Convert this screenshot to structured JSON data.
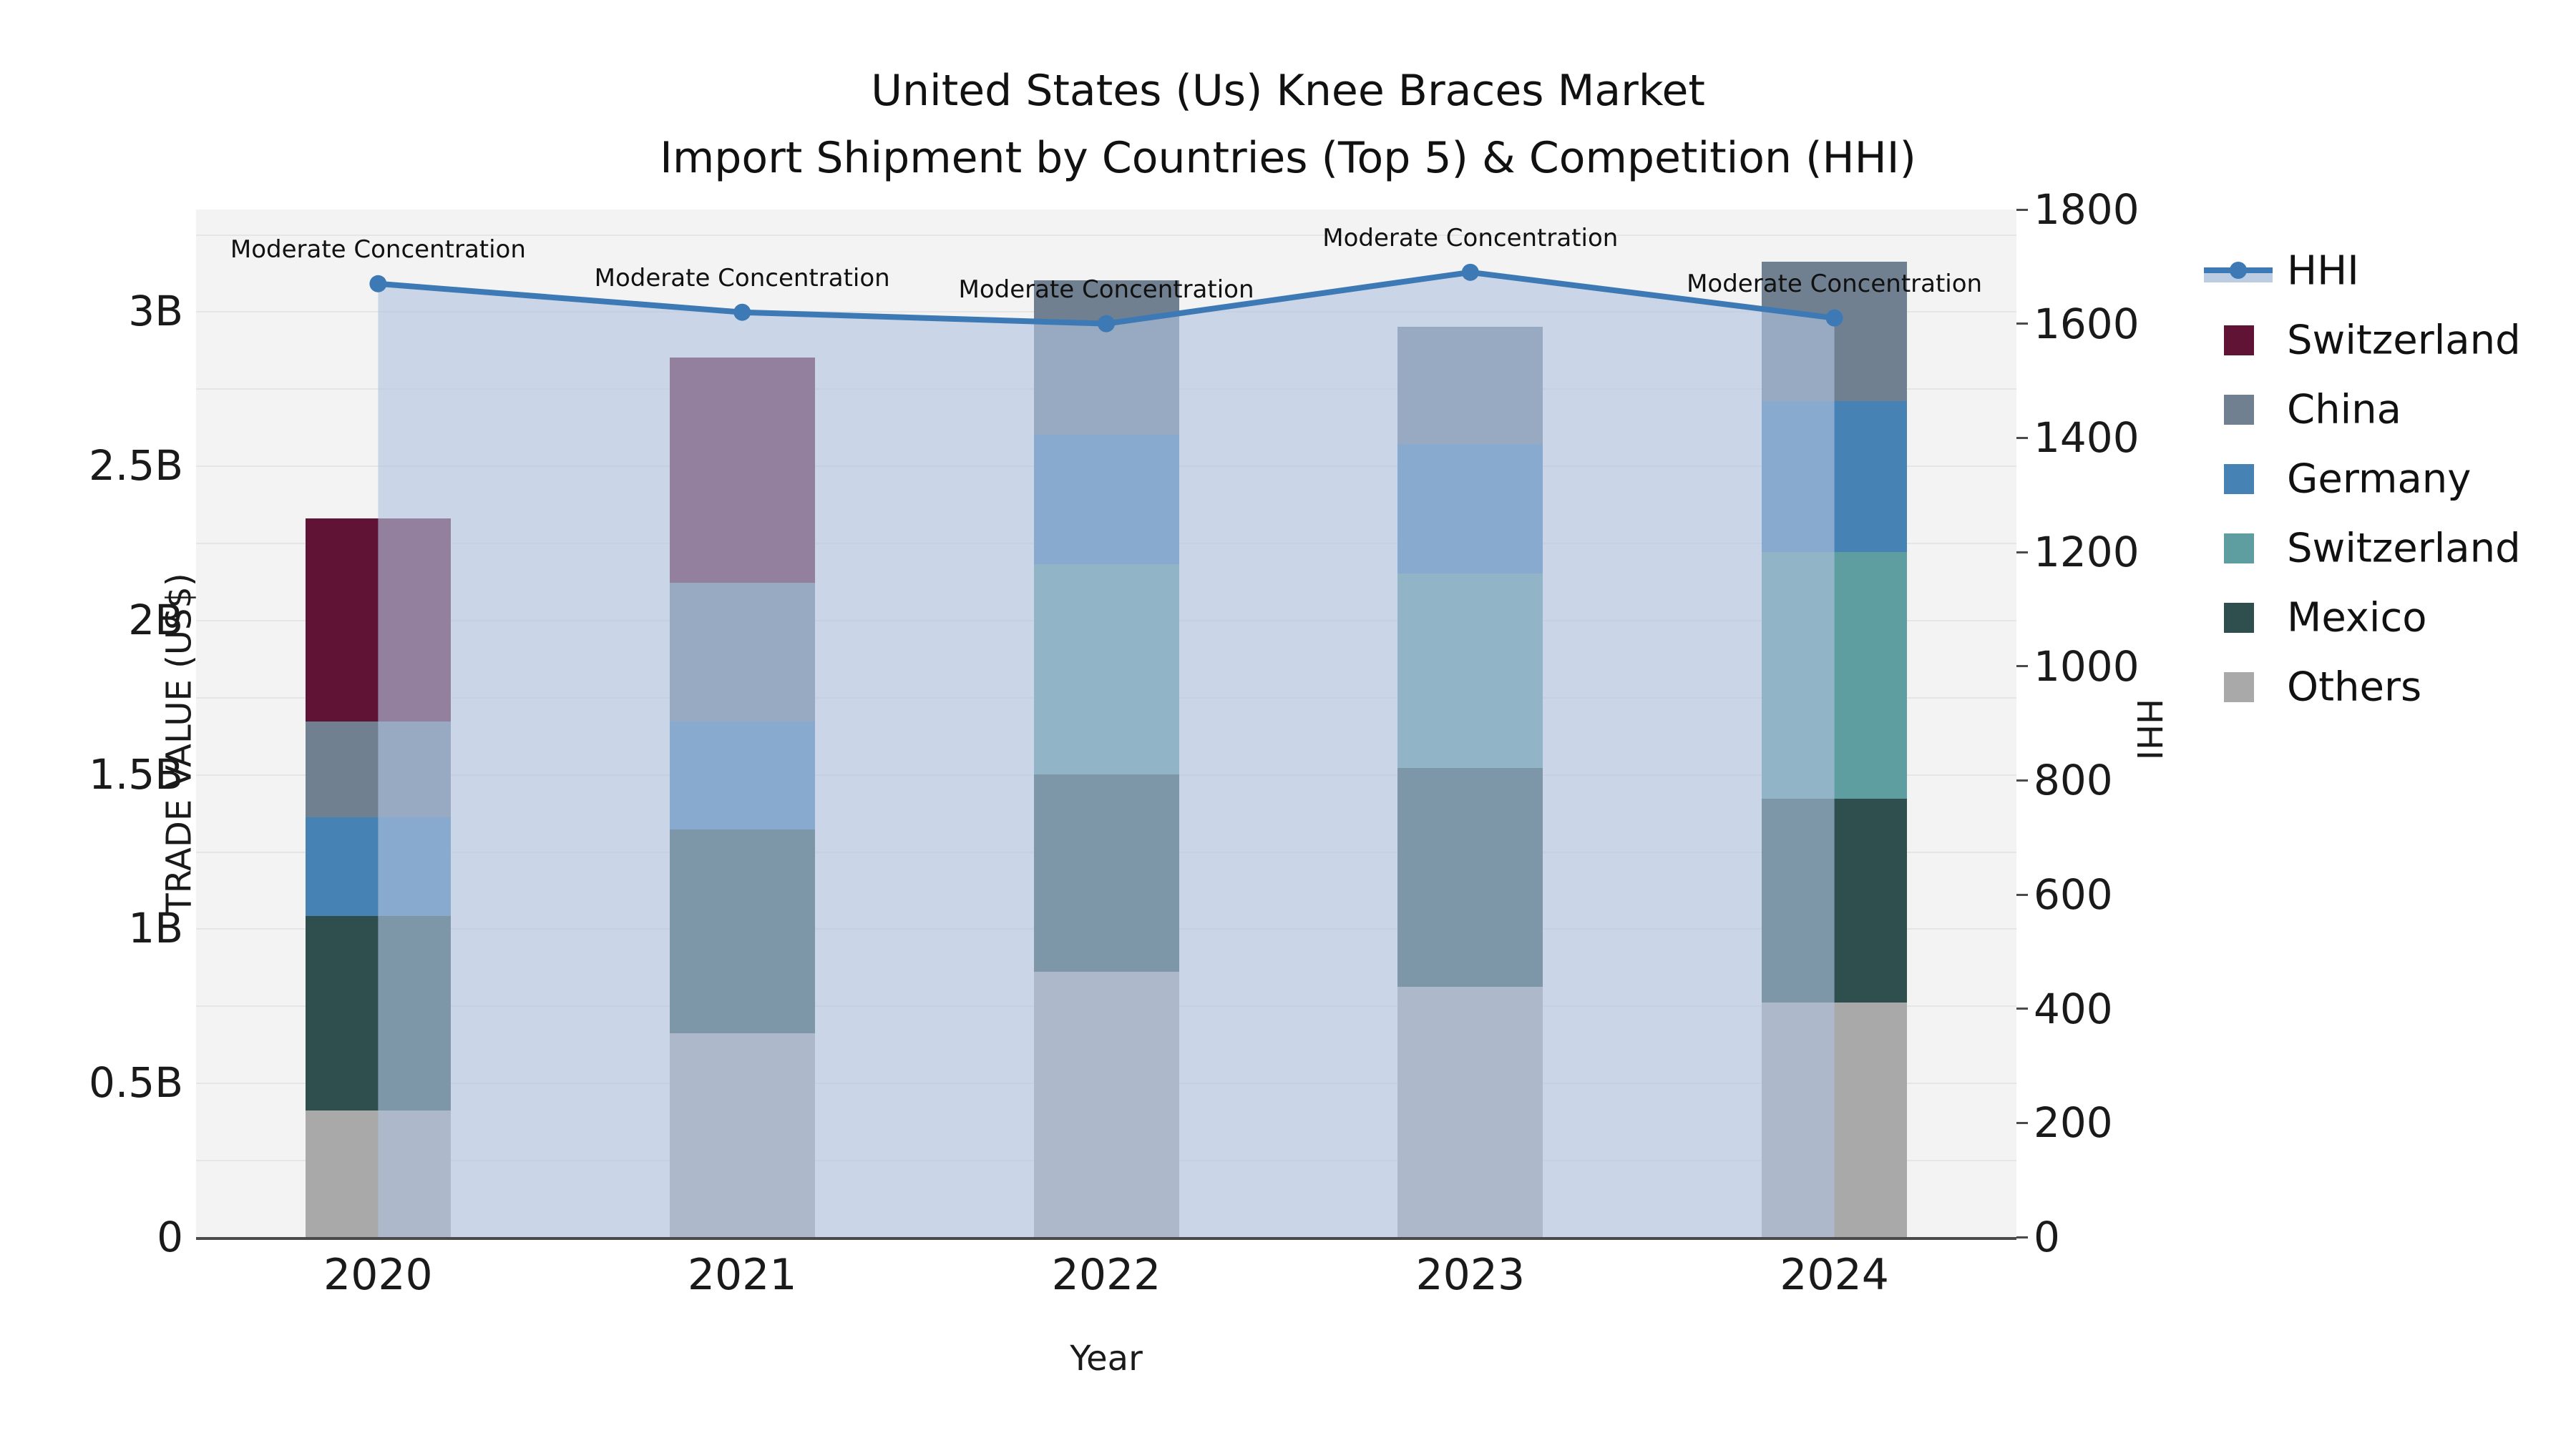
{
  "title": {
    "line1": "United States (Us) Knee Braces Market",
    "line2": "Import Shipment by Countries (Top 5) & Competition (HHI)"
  },
  "axes": {
    "left": {
      "title": "TRADE VALUE (US$)",
      "ticks": [
        {
          "v": 0,
          "label": "0"
        },
        {
          "v": 0.5,
          "label": "0.5B"
        },
        {
          "v": 1,
          "label": "1B"
        },
        {
          "v": 1.5,
          "label": "1.5B"
        },
        {
          "v": 2,
          "label": "2B"
        },
        {
          "v": 2.5,
          "label": "2.5B"
        },
        {
          "v": 3,
          "label": "3B"
        }
      ],
      "max": 3.33
    },
    "right": {
      "title": "HHI",
      "ticks": [
        {
          "v": 0,
          "label": "0"
        },
        {
          "v": 200,
          "label": "200"
        },
        {
          "v": 400,
          "label": "400"
        },
        {
          "v": 600,
          "label": "600"
        },
        {
          "v": 800,
          "label": "800"
        },
        {
          "v": 1000,
          "label": "1000"
        },
        {
          "v": 1200,
          "label": "1200"
        },
        {
          "v": 1400,
          "label": "1400"
        },
        {
          "v": 1600,
          "label": "1600"
        },
        {
          "v": 1800,
          "label": "1800"
        }
      ],
      "max": 1800
    },
    "x": {
      "title": "Year"
    }
  },
  "legend": {
    "items": [
      {
        "label": "HHI",
        "type": "line",
        "color": "#3d7ab5"
      },
      {
        "label": "Switzerland",
        "type": "swatch",
        "color": "#611335"
      },
      {
        "label": "China",
        "type": "swatch",
        "color": "#708090"
      },
      {
        "label": "Germany",
        "type": "swatch",
        "color": "#4682b4"
      },
      {
        "label": "Switzerland",
        "type": "swatch",
        "color": "#5f9ea0"
      },
      {
        "label": "Mexico",
        "type": "swatch",
        "color": "#2f4f4f"
      },
      {
        "label": "Others",
        "type": "swatch",
        "color": "#a9a9a9"
      }
    ]
  },
  "annotations": [
    "Moderate Concentration",
    "Moderate Concentration",
    "Moderate Concentration",
    "Moderate Concentration",
    "Moderate Concentration"
  ],
  "chart_data": {
    "type": "bar+line",
    "title": "United States (Us) Knee Braces Market Import Shipment by Countries (Top 5) & Competition (HHI)",
    "xlabel": "Year",
    "ylabel_left": "TRADE VALUE (US$)",
    "ylabel_right": "HHI",
    "categories": [
      "2020",
      "2021",
      "2022",
      "2023",
      "2024"
    ],
    "bar_unit": "billion US$",
    "ylim_left": [
      0,
      3.33
    ],
    "ylim_right": [
      0,
      1800
    ],
    "grid": true,
    "legend_position": "right",
    "stacked_series_top_to_bottom": [
      {
        "name": "Switzerland",
        "color": "#611335",
        "values": [
          0.66,
          0.73,
          0,
          0,
          0
        ]
      },
      {
        "name": "China",
        "color": "#708090",
        "values": [
          0.31,
          0.45,
          0.5,
          0.38,
          0.45
        ]
      },
      {
        "name": "Germany",
        "color": "#4682b4",
        "values": [
          0.32,
          0.35,
          0.42,
          0.42,
          0.49
        ]
      },
      {
        "name": "Switzerland",
        "color": "#5f9ea0",
        "values": [
          0,
          0,
          0.68,
          0.63,
          0.8
        ]
      },
      {
        "name": "Mexico",
        "color": "#2f4f4f",
        "values": [
          0.63,
          0.66,
          0.64,
          0.71,
          0.66
        ]
      },
      {
        "name": "Others",
        "color": "#a9a9a9",
        "values": [
          0.41,
          0.66,
          0.86,
          0.81,
          0.76
        ]
      }
    ],
    "bar_totals": [
      2.33,
      2.85,
      3.1,
      2.95,
      3.16
    ],
    "line_series": {
      "name": "HHI",
      "color": "#3d7ab5",
      "fill_color": "rgba(176,196,222,0.62)",
      "values": [
        1670,
        1620,
        1600,
        1690,
        1610
      ],
      "point_annotations": [
        "Moderate Concentration",
        "Moderate Concentration",
        "Moderate Concentration",
        "Moderate Concentration",
        "Moderate Concentration"
      ]
    }
  }
}
